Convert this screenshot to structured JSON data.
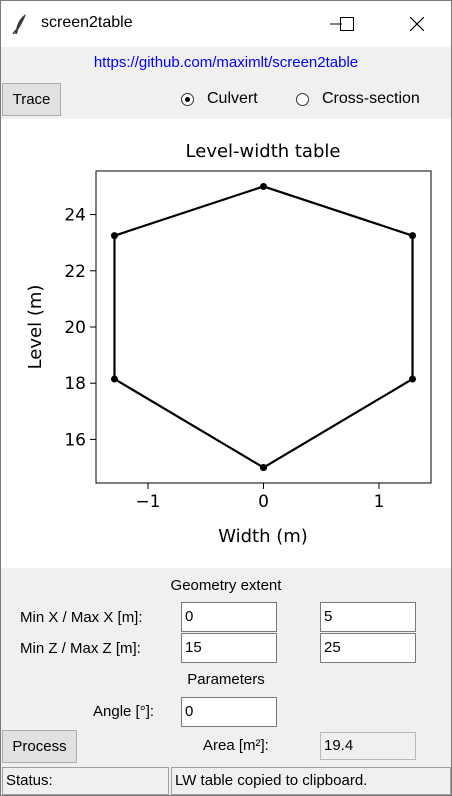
{
  "window": {
    "title": "screen2table"
  },
  "header": {
    "link": "https://github.com/maximlt/screen2table"
  },
  "toolbar": {
    "trace_label": "Trace",
    "radios": [
      {
        "label": "Culvert",
        "selected": true
      },
      {
        "label": "Cross-section",
        "selected": false
      }
    ]
  },
  "chart_data": {
    "type": "line",
    "title": "Level-width table",
    "xlabel": "Width (m)",
    "ylabel": "Level (m)",
    "xlim": [
      -1.45,
      1.45
    ],
    "ylim": [
      14.45,
      25.55
    ],
    "xticks": [
      {
        "value": -1,
        "label": "−1"
      },
      {
        "value": 0,
        "label": "0"
      },
      {
        "value": 1,
        "label": "1"
      }
    ],
    "yticks": [
      {
        "value": 16,
        "label": "16"
      },
      {
        "value": 18,
        "label": "18"
      },
      {
        "value": 20,
        "label": "20"
      },
      {
        "value": 22,
        "label": "22"
      },
      {
        "value": 24,
        "label": "24"
      }
    ],
    "series": [
      {
        "points": [
          [
            0,
            15
          ],
          [
            1.29,
            18.15
          ],
          [
            1.29,
            23.25
          ],
          [
            0,
            25
          ],
          [
            -1.29,
            23.25
          ],
          [
            -1.29,
            18.15
          ],
          [
            0,
            15
          ]
        ],
        "color": "#000000",
        "marker": "circle"
      }
    ],
    "grid": false
  },
  "geometry": {
    "section_title": "Geometry extent",
    "minmax_x_label": "Min X / Max X [m]:",
    "min_x": "0",
    "max_x": "5",
    "minmax_z_label": "Min Z / Max Z [m]:",
    "min_z": "15",
    "max_z": "25"
  },
  "parameters": {
    "section_title": "Parameters",
    "angle_label": "Angle [°]:",
    "angle": "0"
  },
  "process": {
    "button_label": "Process",
    "area_label": "Area [m²]:",
    "area_value": "19.4"
  },
  "status": {
    "label": "Status:",
    "message": "LW table copied to clipboard."
  }
}
